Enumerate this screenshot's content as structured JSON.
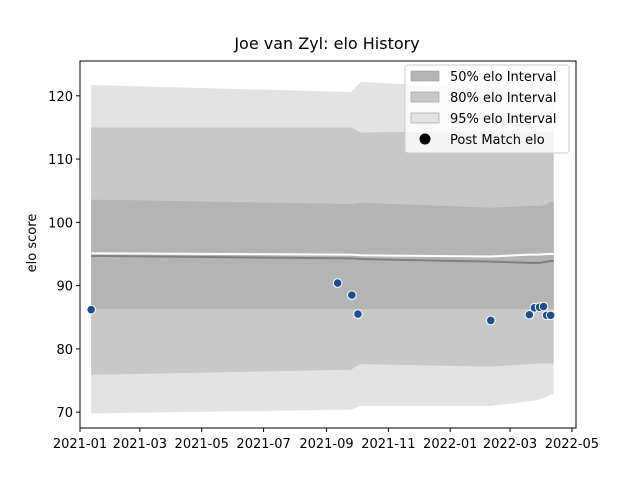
{
  "chart_data": {
    "type": "line",
    "title": "Joe van Zyl: elo History",
    "xlabel": "",
    "ylabel": "elo score",
    "xlim": [
      "2021-01-01",
      "2022-05-05"
    ],
    "ylim": [
      67.5,
      125.5
    ],
    "x_ticks": [
      "2021-01",
      "2021-03",
      "2021-05",
      "2021-07",
      "2021-09",
      "2021-11",
      "2022-01",
      "2022-03",
      "2022-05"
    ],
    "y_ticks": [
      70,
      80,
      90,
      100,
      110,
      120
    ],
    "grid": false,
    "legend_position": "top-right",
    "colors": {
      "interval_50": "#b4b4b4",
      "interval_80": "#c8c8c8",
      "interval_95": "#e3e3e3",
      "mean_line": "#808080",
      "post_line": "#ffffff",
      "marker_fill": "#1f4e8c",
      "marker_edge": "#ffffff"
    },
    "bands": {
      "x": [
        "2021-01-12",
        "2021-09-25",
        "2021-10-05",
        "2022-02-10",
        "2022-03-20",
        "2022-03-30",
        "2022-04-06",
        "2022-04-10",
        "2022-04-13"
      ],
      "mean": [
        94.7,
        94.3,
        94.2,
        93.8,
        93.6,
        93.6,
        93.8,
        93.9,
        93.9
      ],
      "interval_50": {
        "lower": [
          86.3,
          86.3,
          86.3,
          86.3,
          86.3,
          86.3,
          86.3,
          86.3,
          86.3
        ],
        "upper": [
          103.6,
          102.9,
          103.1,
          102.3,
          102.6,
          102.6,
          102.8,
          103.3,
          103.2
        ]
      },
      "interval_80": {
        "lower": [
          75.9,
          76.7,
          77.6,
          77.2,
          77.6,
          77.7,
          77.7,
          77.7,
          77.7
        ],
        "upper": [
          115.0,
          115.0,
          114.2,
          114.4,
          114.3,
          114.3,
          114.3,
          114.3,
          114.3
        ]
      },
      "interval_95": {
        "lower": [
          69.8,
          70.4,
          71.0,
          71.0,
          71.7,
          72.0,
          72.4,
          72.8,
          72.9
        ],
        "upper": [
          121.7,
          120.6,
          122.2,
          121.1,
          120.4,
          120.4,
          120.4,
          120.4,
          120.4
        ]
      }
    },
    "post_match_line": {
      "x": [
        "2021-01-12",
        "2021-09-25",
        "2021-10-05",
        "2022-02-10",
        "2022-03-20",
        "2022-03-30",
        "2022-04-06",
        "2022-04-13"
      ],
      "y": [
        95.1,
        94.9,
        94.8,
        94.6,
        94.9,
        94.9,
        95.0,
        95.0
      ]
    },
    "series": [
      {
        "name": "Post Match elo",
        "type": "scatter",
        "x": [
          "2021-01-12",
          "2021-09-12",
          "2021-09-26",
          "2021-10-02",
          "2022-02-10",
          "2022-03-20",
          "2022-03-25",
          "2022-03-30",
          "2022-04-03",
          "2022-04-06",
          "2022-04-10"
        ],
        "y": [
          86.2,
          90.4,
          88.5,
          85.5,
          84.5,
          85.4,
          86.5,
          86.6,
          86.7,
          85.3,
          85.3
        ]
      }
    ],
    "legend": [
      {
        "label": "50% elo Interval",
        "kind": "patch",
        "color": "#b4b4b4"
      },
      {
        "label": "80% elo Interval",
        "kind": "patch",
        "color": "#c8c8c8"
      },
      {
        "label": "95% elo Interval",
        "kind": "patch",
        "color": "#e3e3e3"
      },
      {
        "label": "Post Match elo",
        "kind": "marker",
        "color": "#000000"
      }
    ]
  }
}
